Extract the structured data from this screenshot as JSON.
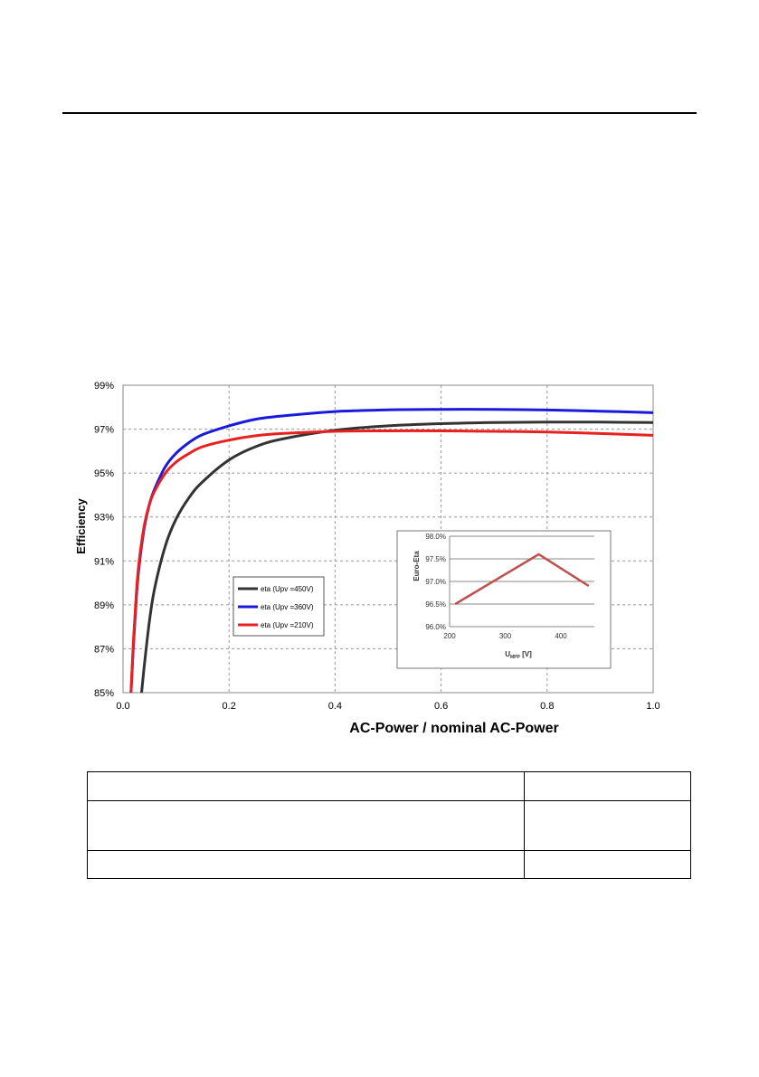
{
  "page": {
    "number": ""
  },
  "spec_table": {
    "rows": [
      {
        "parameter": "",
        "value": ""
      },
      {
        "parameter": "",
        "value": ""
      },
      {
        "parameter": "",
        "value": ""
      }
    ]
  },
  "chart_data": [
    {
      "type": "line",
      "xlabel": "AC-Power / nominal AC-Power",
      "ylabel": "Efficiency",
      "xlim": [
        0.0,
        1.0
      ],
      "ylim": [
        85,
        99
      ],
      "x_ticks": [
        "0.0",
        "0.2",
        "0.4",
        "0.6",
        "0.8",
        "1.0"
      ],
      "y_ticks": [
        "85%",
        "87%",
        "89%",
        "91%",
        "93%",
        "95%",
        "97%",
        "99%"
      ],
      "grid": true,
      "legend": "middle-left",
      "series": [
        {
          "name": "eta (Upv =450V)",
          "color": "#333333",
          "x": [
            0.035,
            0.04,
            0.05,
            0.06,
            0.08,
            0.1,
            0.125,
            0.15,
            0.2,
            0.25,
            0.3,
            0.4,
            0.5,
            0.6,
            0.7,
            0.8,
            0.9,
            1.0
          ],
          "y": [
            85.0,
            86.2,
            88.3,
            89.8,
            91.7,
            92.9,
            93.9,
            94.6,
            95.6,
            96.2,
            96.55,
            96.95,
            97.15,
            97.25,
            97.3,
            97.32,
            97.32,
            97.3
          ]
        },
        {
          "name": "eta (Upv =360V)",
          "color": "#1a1adb",
          "x": [
            0.015,
            0.02,
            0.025,
            0.03,
            0.04,
            0.05,
            0.06,
            0.08,
            0.1,
            0.125,
            0.15,
            0.2,
            0.25,
            0.3,
            0.4,
            0.5,
            0.6,
            0.7,
            0.8,
            0.9,
            1.0
          ],
          "y": [
            85.0,
            87.3,
            89.3,
            90.7,
            92.5,
            93.6,
            94.3,
            95.3,
            95.9,
            96.4,
            96.75,
            97.15,
            97.45,
            97.6,
            97.8,
            97.88,
            97.9,
            97.9,
            97.87,
            97.82,
            97.75
          ]
        },
        {
          "name": "eta (Upv =210V)",
          "color": "#e82020",
          "x": [
            0.015,
            0.02,
            0.025,
            0.03,
            0.04,
            0.05,
            0.06,
            0.08,
            0.1,
            0.125,
            0.15,
            0.2,
            0.25,
            0.3,
            0.4,
            0.5,
            0.6,
            0.7,
            0.8,
            0.9,
            1.0
          ],
          "y": [
            85.0,
            87.5,
            89.5,
            90.9,
            92.6,
            93.6,
            94.2,
            95.0,
            95.5,
            95.9,
            96.2,
            96.5,
            96.7,
            96.8,
            96.9,
            96.92,
            96.92,
            96.9,
            96.87,
            96.8,
            96.72
          ]
        }
      ]
    },
    {
      "type": "line",
      "xlabel": "U",
      "xlabel_sub": "MPP",
      "xlabel_unit": " [V]",
      "ylabel": "Euro-Eta",
      "xlim": [
        200,
        460
      ],
      "ylim": [
        96.0,
        98.0
      ],
      "x_ticks": [
        "200",
        "300",
        "400"
      ],
      "y_ticks": [
        "96.0%",
        "96.5%",
        "97.0%",
        "97.5%",
        "98.0%"
      ],
      "grid": true,
      "series": [
        {
          "color": "#c0504d",
          "x": [
            210,
            360,
            450
          ],
          "y": [
            96.5,
            97.6,
            96.9
          ]
        }
      ]
    }
  ]
}
